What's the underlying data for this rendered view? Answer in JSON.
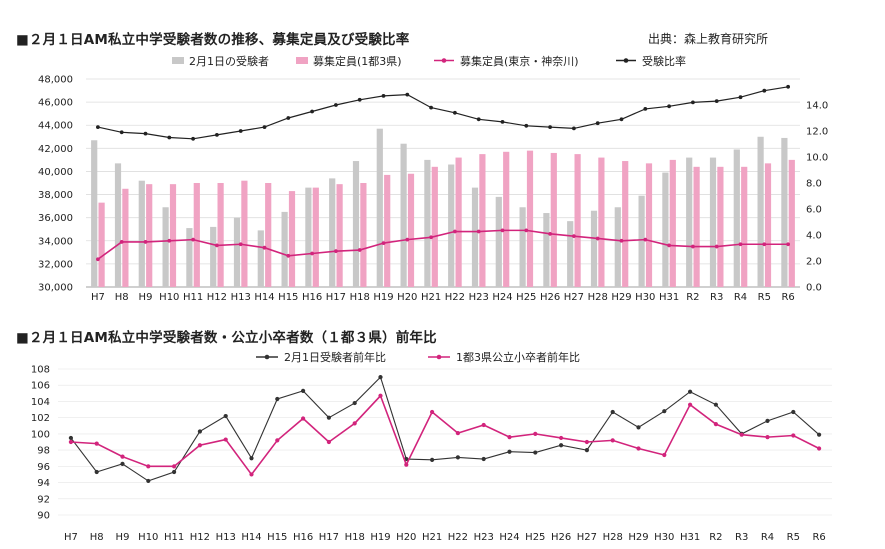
{
  "chart_data": [
    {
      "type": "bar",
      "title": "■２月１日AM私立中学受験者数の推移、募集定員及び受験比率",
      "source": "出典：森上教育研究所",
      "categories": [
        "H7",
        "H8",
        "H9",
        "H10",
        "H11",
        "H12",
        "H13",
        "H14",
        "H15",
        "H16",
        "H17",
        "H18",
        "H19",
        "H20",
        "H21",
        "H22",
        "H23",
        "H24",
        "H25",
        "H26",
        "H27",
        "H28",
        "H29",
        "H30",
        "H31",
        "R2",
        "R3",
        "R4",
        "R5",
        "R6"
      ],
      "ylim_left": [
        30000,
        48000
      ],
      "ylim_right": [
        0,
        16
      ],
      "yticks_left": [
        "30,000",
        "32,000",
        "34,000",
        "36,000",
        "38,000",
        "40,000",
        "42,000",
        "44,000",
        "46,000",
        "48,000"
      ],
      "yticks_right": [
        "0.0",
        "2.0",
        "4.0",
        "6.0",
        "8.0",
        "10.0",
        "12.0",
        "14.0"
      ],
      "series": [
        {
          "name": "2月1日の受験者",
          "kind": "bar",
          "axis": "left",
          "color": "#c8c8c8",
          "values": [
            42700,
            40700,
            39200,
            36900,
            35100,
            35200,
            36000,
            34900,
            36500,
            38600,
            39400,
            40900,
            43700,
            42400,
            41000,
            40600,
            38600,
            37800,
            36900,
            36400,
            35700,
            36600,
            36900,
            37900,
            39900,
            41200,
            41200,
            41900,
            43000,
            42900
          ]
        },
        {
          "name": "募集定員(1都3県)",
          "kind": "bar",
          "axis": "left",
          "color": "#f0a3c3",
          "values": [
            37300,
            38500,
            38900,
            38900,
            39000,
            39000,
            39200,
            39000,
            38300,
            38600,
            38900,
            39000,
            39700,
            39800,
            40400,
            41200,
            41500,
            41700,
            41800,
            41600,
            41500,
            41200,
            40900,
            40700,
            41000,
            40400,
            40400,
            40400,
            40700,
            41000
          ]
        },
        {
          "name": "募集定員(東京・神奈川)",
          "kind": "line",
          "axis": "left",
          "color": "#d2247c",
          "values": [
            32400,
            33900,
            33900,
            34000,
            34100,
            33600,
            33700,
            33400,
            32700,
            32900,
            33100,
            33200,
            33800,
            34100,
            34300,
            34800,
            34800,
            34900,
            34900,
            34600,
            34400,
            34200,
            34000,
            34100,
            33600,
            33500,
            33500,
            33700,
            33700,
            33700
          ]
        },
        {
          "name": "受験比率",
          "kind": "line",
          "axis": "right",
          "color": "#222222",
          "values": [
            12.3,
            11.9,
            11.8,
            11.5,
            11.4,
            11.7,
            12.0,
            12.3,
            13.0,
            13.5,
            14.0,
            14.4,
            14.7,
            14.8,
            13.8,
            13.4,
            12.9,
            12.7,
            12.4,
            12.3,
            12.2,
            12.6,
            12.9,
            13.7,
            13.9,
            14.2,
            14.3,
            14.6,
            15.1,
            15.4
          ]
        }
      ]
    },
    {
      "type": "line",
      "title": "■２月１日AM私立中学受験者数・公立小卒者数（１都３県）前年比",
      "categories": [
        "H7",
        "H8",
        "H9",
        "H10",
        "H11",
        "H12",
        "H13",
        "H14",
        "H15",
        "H16",
        "H17",
        "H18",
        "H19",
        "H20",
        "H21",
        "H22",
        "H23",
        "H24",
        "H25",
        "H26",
        "H27",
        "H28",
        "H29",
        "H30",
        "H31",
        "R2",
        "R3",
        "R4",
        "R5",
        "R6"
      ],
      "ylim": [
        90,
        108
      ],
      "yticks": [
        "90",
        "92",
        "94",
        "96",
        "98",
        "100",
        "102",
        "104",
        "106",
        "108"
      ],
      "series": [
        {
          "name": "2月1日受験者前年比",
          "color": "#333333",
          "values": [
            99.5,
            95.3,
            96.3,
            94.2,
            95.3,
            100.3,
            102.2,
            97.0,
            104.3,
            105.3,
            102.0,
            103.8,
            107.0,
            96.9,
            96.8,
            97.1,
            96.9,
            97.8,
            97.7,
            98.6,
            98.0,
            102.7,
            100.8,
            102.8,
            105.2,
            103.6,
            100.0,
            101.6,
            102.7,
            99.9
          ]
        },
        {
          "name": "1都3県公立小卒者前年比",
          "color": "#d2247c",
          "values": [
            99.0,
            98.8,
            97.2,
            96.0,
            96.0,
            98.6,
            99.3,
            95.0,
            99.2,
            101.9,
            99.0,
            101.3,
            104.7,
            96.2,
            102.7,
            100.1,
            101.1,
            99.6,
            100.0,
            99.5,
            99.0,
            99.2,
            98.2,
            97.4,
            103.6,
            101.2,
            99.9,
            99.6,
            99.8,
            98.2
          ]
        }
      ]
    }
  ]
}
